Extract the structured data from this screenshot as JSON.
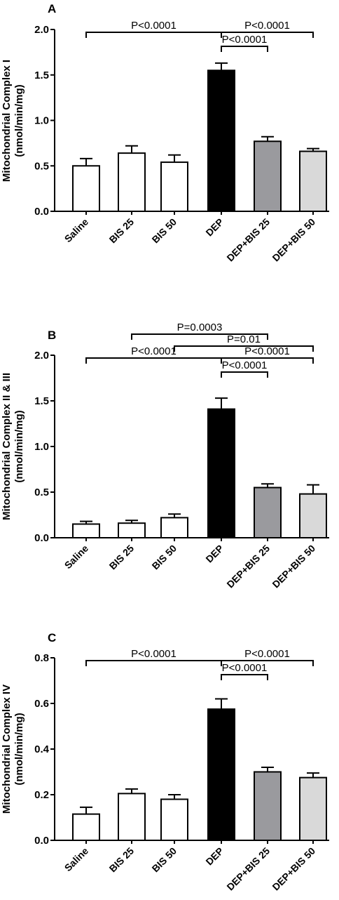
{
  "chart_data": [
    {
      "type": "bar",
      "panel": "A",
      "ylabel_line1": "Mitochondrial Complex I",
      "ylabel_line2": "(nmol/min/mg)",
      "ylim": [
        0,
        2.0
      ],
      "yticks": [
        "0.0",
        "0.5",
        "1.0",
        "1.5",
        "2.0"
      ],
      "tick_values": [
        0,
        0.5,
        1.0,
        1.5,
        2.0
      ],
      "categories": [
        "Saline",
        "BIS 25",
        "BIS 50",
        "DEP",
        "DEP+BIS 25",
        "DEP+BIS 50"
      ],
      "values": [
        0.5,
        0.64,
        0.54,
        1.55,
        0.77,
        0.66
      ],
      "errors": [
        0.08,
        0.08,
        0.08,
        0.08,
        0.05,
        0.03
      ],
      "comparisons": [
        {
          "from": 0,
          "to": 3,
          "label": "P<0.0001",
          "level": 2
        },
        {
          "from": 3,
          "to": 5,
          "label": "P<0.0001",
          "level": 2
        },
        {
          "from": 3,
          "to": 4,
          "label": "P<0.0001",
          "level": 0
        }
      ]
    },
    {
      "type": "bar",
      "panel": "B",
      "ylabel_line1": "Mitochondrial Complex II & III",
      "ylabel_line2": "(nmol/min/mg)",
      "ylim": [
        0,
        2.0
      ],
      "yticks": [
        "0.0",
        "0.5",
        "1.0",
        "1.5",
        "2.0"
      ],
      "tick_values": [
        0,
        0.5,
        1.0,
        1.5,
        2.0
      ],
      "categories": [
        "Saline",
        "BIS 25",
        "BIS 50",
        "DEP",
        "DEP+BIS 25",
        "DEP+BIS 50"
      ],
      "values": [
        0.15,
        0.16,
        0.22,
        1.41,
        0.55,
        0.48
      ],
      "errors": [
        0.03,
        0.03,
        0.04,
        0.12,
        0.04,
        0.1
      ],
      "comparisons": [
        {
          "from": 1,
          "to": 4,
          "label": "P=0.0003",
          "level": 4
        },
        {
          "from": 2,
          "to": 5,
          "label": "P=0.01",
          "level": 3
        },
        {
          "from": 0,
          "to": 3,
          "label": "P<0.0001",
          "level": 2
        },
        {
          "from": 3,
          "to": 5,
          "label": "P<0.0001",
          "level": 2
        },
        {
          "from": 3,
          "to": 4,
          "label": "P<0.0001",
          "level": 0
        }
      ]
    },
    {
      "type": "bar",
      "panel": "C",
      "ylabel_line1": "Mitochondrial Complex IV",
      "ylabel_line2": "(nmol/min/mg)",
      "ylim": [
        0,
        0.8
      ],
      "yticks": [
        "0.0",
        "0.2",
        "0.4",
        "0.6",
        "0.8"
      ],
      "tick_values": [
        0,
        0.2,
        0.4,
        0.6,
        0.8
      ],
      "categories": [
        "Saline",
        "BIS 25",
        "BIS 50",
        "DEP",
        "DEP+BIS 25",
        "DEP+BIS 50"
      ],
      "values": [
        0.115,
        0.205,
        0.18,
        0.575,
        0.3,
        0.275
      ],
      "errors": [
        0.03,
        0.02,
        0.02,
        0.045,
        0.02,
        0.02
      ],
      "comparisons": [
        {
          "from": 0,
          "to": 3,
          "label": "P<0.0001",
          "level": 2
        },
        {
          "from": 3,
          "to": 5,
          "label": "P<0.0001",
          "level": 2
        },
        {
          "from": 3,
          "to": 4,
          "label": "P<0.0001",
          "level": 0
        }
      ]
    }
  ],
  "bar_colors": [
    "#ffffff",
    "#ffffff",
    "#ffffff",
    "#000000",
    "#9a9a9e",
    "#d9d9d9"
  ]
}
